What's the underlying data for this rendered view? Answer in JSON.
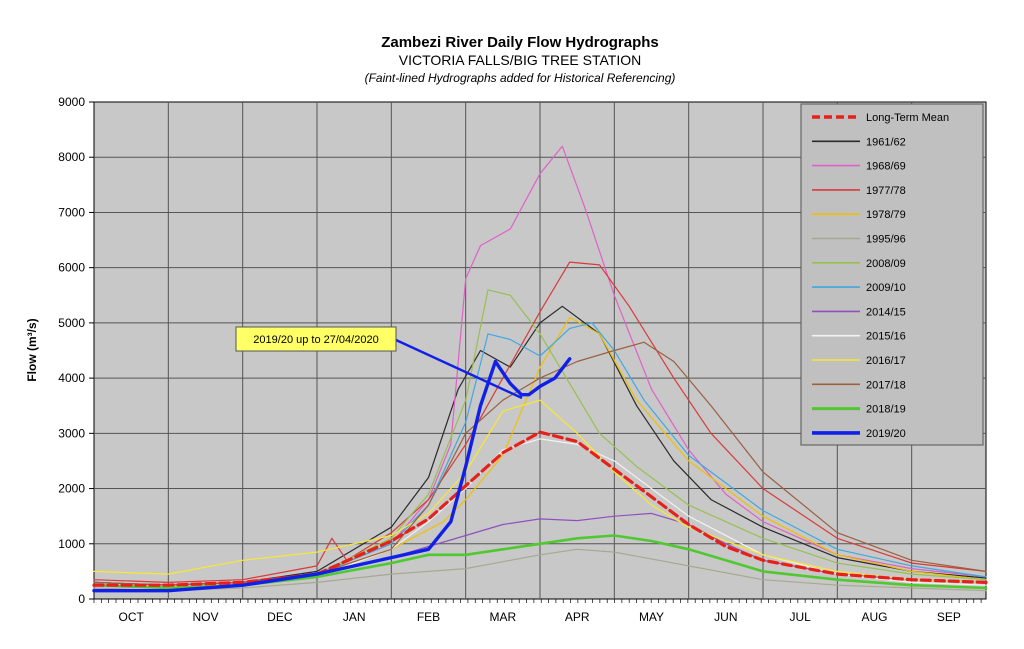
{
  "chart_data": {
    "type": "line",
    "title": "Zambezi River Daily Flow Hydrographs",
    "subtitle": "VICTORIA FALLS/BIG TREE STATION",
    "note": "(Faint-lined Hydrographs added for Historical Referencing)",
    "ylabel": "Flow (m³/s)",
    "ylim": [
      0,
      9000
    ],
    "yticks": [
      "0",
      "1000",
      "2000",
      "3000",
      "4000",
      "5000",
      "6000",
      "7000",
      "8000",
      "9000"
    ],
    "categories": [
      "OCT",
      "NOV",
      "DEC",
      "JAN",
      "FEB",
      "MAR",
      "APR",
      "MAY",
      "JUN",
      "JUL",
      "AUG",
      "SEP"
    ],
    "xlim": [
      0,
      12
    ],
    "grid": true,
    "legend_position": "top-right",
    "annotation": "2019/20 up to 27/04/2020",
    "series": [
      {
        "name": "Long-Term Mean",
        "color": "#e8201a",
        "width": 3.2,
        "dash": "9,5",
        "x": [
          0,
          1,
          2,
          3,
          4,
          4.5,
          5,
          5.5,
          6,
          6.5,
          7,
          7.5,
          8,
          8.5,
          9,
          10,
          11,
          12
        ],
        "y": [
          250,
          250,
          300,
          450,
          1050,
          1450,
          2050,
          2650,
          3020,
          2850,
          2350,
          1850,
          1350,
          950,
          700,
          450,
          350,
          300
        ]
      },
      {
        "name": "1961/62",
        "color": "#2a2a2a",
        "width": 1.2,
        "x": [
          0,
          1,
          2,
          3,
          4,
          4.5,
          4.9,
          5.2,
          5.6,
          6,
          6.3,
          6.8,
          7.3,
          7.8,
          8.3,
          9,
          10,
          11,
          12
        ],
        "y": [
          300,
          250,
          300,
          500,
          1300,
          2200,
          3800,
          4500,
          4200,
          5000,
          5300,
          4800,
          3500,
          2500,
          1800,
          1300,
          750,
          500,
          380
        ]
      },
      {
        "name": "1968/69",
        "color": "#e060c8",
        "width": 1.2,
        "x": [
          0,
          1,
          2,
          3,
          4,
          4.5,
          4.8,
          5,
          5.2,
          5.6,
          6,
          6.3,
          6.6,
          7,
          7.5,
          8,
          8.5,
          9,
          10,
          11,
          12
        ],
        "y": [
          300,
          250,
          300,
          450,
          1000,
          1800,
          2800,
          5800,
          6400,
          6700,
          7700,
          8200,
          7100,
          5500,
          3800,
          2700,
          1900,
          1400,
          800,
          550,
          400
        ]
      },
      {
        "name": "1977/78",
        "color": "#d93a3a",
        "width": 1.2,
        "x": [
          0,
          1,
          2,
          3,
          3.2,
          3.4,
          4,
          4.5,
          5,
          5.5,
          6,
          6.4,
          6.8,
          7.2,
          7.8,
          8.3,
          9,
          10,
          11,
          12
        ],
        "y": [
          350,
          300,
          350,
          600,
          1100,
          700,
          1200,
          1800,
          2800,
          4000,
          5200,
          6100,
          6050,
          5300,
          4000,
          3000,
          2000,
          1100,
          650,
          500
        ]
      },
      {
        "name": "1978/79",
        "color": "#f0c000",
        "width": 1.2,
        "x": [
          0,
          1,
          2,
          3,
          4,
          4.7,
          5,
          5.5,
          6,
          6.4,
          6.8,
          7.3,
          8,
          9,
          10,
          11,
          12
        ],
        "y": [
          300,
          250,
          300,
          450,
          900,
          1400,
          1800,
          2600,
          4200,
          5100,
          4800,
          3600,
          2500,
          1500,
          800,
          500,
          350
        ]
      },
      {
        "name": "1995/96",
        "color": "#a8a890",
        "width": 1.2,
        "x": [
          0,
          1,
          2,
          3,
          4,
          5,
          6,
          6.5,
          7,
          8,
          9,
          10,
          11,
          12
        ],
        "y": [
          200,
          150,
          200,
          300,
          450,
          550,
          800,
          900,
          850,
          600,
          350,
          250,
          200,
          150
        ]
      },
      {
        "name": "2008/09",
        "color": "#98c050",
        "width": 1.2,
        "x": [
          0,
          1,
          2,
          3,
          4,
          4.5,
          5,
          5.3,
          5.6,
          6,
          6.4,
          6.8,
          7.3,
          8,
          9,
          10,
          11,
          12
        ],
        "y": [
          300,
          250,
          300,
          450,
          1100,
          1900,
          3600,
          5600,
          5500,
          4800,
          3900,
          3000,
          2400,
          1700,
          1100,
          650,
          450,
          350
        ]
      },
      {
        "name": "2009/10",
        "color": "#40a8e0",
        "width": 1.2,
        "x": [
          0,
          1,
          2,
          3,
          4,
          4.5,
          5,
          5.3,
          5.6,
          6,
          6.4,
          6.7,
          7,
          7.4,
          8,
          9,
          10,
          11,
          12
        ],
        "y": [
          300,
          250,
          300,
          450,
          1000,
          1700,
          3200,
          4800,
          4700,
          4400,
          4900,
          5000,
          4500,
          3600,
          2600,
          1600,
          900,
          600,
          400
        ]
      },
      {
        "name": "2014/15",
        "color": "#9050c0",
        "width": 1.2,
        "x": [
          0,
          1,
          2,
          3,
          4,
          4.5,
          5,
          5.5,
          6,
          6.5,
          7,
          7.5,
          8,
          8.5,
          9,
          10,
          11,
          12
        ],
        "y": [
          300,
          250,
          300,
          450,
          750,
          950,
          1150,
          1350,
          1450,
          1420,
          1500,
          1550,
          1350,
          1000,
          700,
          450,
          350,
          300
        ]
      },
      {
        "name": "2015/16",
        "color": "#f2f2f2",
        "width": 1.2,
        "x": [
          0,
          1,
          2,
          3,
          4,
          4.5,
          5,
          5.5,
          6,
          6.5,
          7,
          7.5,
          8,
          9,
          10,
          11,
          12
        ],
        "y": [
          250,
          200,
          250,
          400,
          900,
          1400,
          2000,
          2700,
          2900,
          2800,
          2500,
          2000,
          1500,
          800,
          450,
          300,
          250
        ]
      },
      {
        "name": "2016/17",
        "color": "#f8e830",
        "width": 1.2,
        "x": [
          0,
          1,
          2,
          3,
          4,
          4.5,
          5,
          5.5,
          6,
          6.5,
          7,
          7.5,
          8,
          9,
          10,
          11,
          12
        ],
        "y": [
          500,
          450,
          700,
          850,
          1150,
          1550,
          2300,
          3400,
          3600,
          3000,
          2300,
          1700,
          1300,
          800,
          500,
          350,
          300
        ]
      },
      {
        "name": "2017/18",
        "color": "#9b6040",
        "width": 1.2,
        "x": [
          0,
          1,
          2,
          3,
          4,
          4.5,
          5,
          5.5,
          6,
          6.5,
          7,
          7.4,
          7.8,
          8.3,
          9,
          10,
          11,
          12
        ],
        "y": [
          300,
          250,
          300,
          450,
          900,
          1700,
          3000,
          3600,
          4000,
          4300,
          4500,
          4650,
          4300,
          3500,
          2300,
          1200,
          700,
          500
        ]
      },
      {
        "name": "2018/19",
        "color": "#50c830",
        "width": 2.6,
        "x": [
          0,
          1,
          2,
          3,
          4,
          4.5,
          5,
          5.5,
          6,
          6.5,
          7,
          7.5,
          8,
          8.5,
          9,
          10,
          11,
          12
        ],
        "y": [
          250,
          200,
          250,
          400,
          650,
          800,
          800,
          900,
          1000,
          1100,
          1150,
          1050,
          900,
          700,
          500,
          350,
          250,
          200
        ]
      },
      {
        "name": "2019/20",
        "color": "#1020e8",
        "width": 3.4,
        "x": [
          0,
          1,
          2,
          3,
          3.5,
          4,
          4.5,
          4.8,
          5,
          5.2,
          5.4,
          5.6,
          5.75,
          5.85,
          6,
          6.2,
          6.4
        ],
        "y": [
          150,
          150,
          250,
          450,
          600,
          750,
          900,
          1400,
          2400,
          3500,
          4300,
          3900,
          3700,
          3700,
          3850,
          4000,
          4350
        ]
      }
    ]
  }
}
